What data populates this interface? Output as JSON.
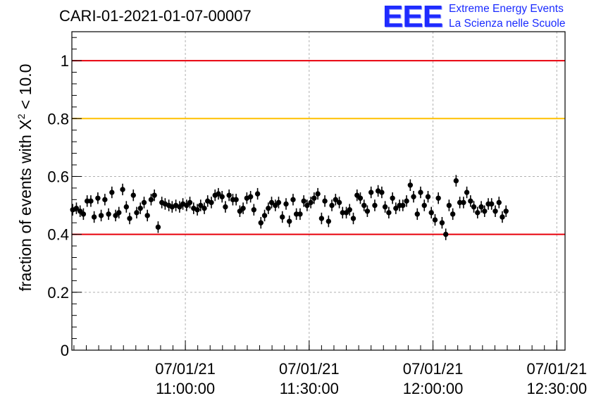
{
  "header": {
    "run_title": "CARI-01-2021-01-07-00007",
    "logo_mark": "EEE",
    "logo_line1": "Extreme Energy Events",
    "logo_line2": "La Scienza nelle Scuole"
  },
  "colors": {
    "points": "#000000",
    "limit_low": "#e8000b",
    "limit_high": "#e8000b",
    "reference": "#ffc000",
    "grid": "#b0b0b0",
    "logo": "#1f2bff"
  },
  "chart_data": {
    "type": "scatter",
    "ylabel_prefix": "fraction of events with ",
    "ylabel_symbol": "X",
    "ylabel_exp": "2",
    "ylabel_suffix": " < 10.0",
    "ylim": [
      0,
      1.1
    ],
    "xlim_minutes": [
      -27.5,
      92
    ],
    "y_ticks": [
      {
        "value": 0,
        "label": "0"
      },
      {
        "value": 0.2,
        "label": "0.2"
      },
      {
        "value": 0.4,
        "label": "0.4"
      },
      {
        "value": 0.6,
        "label": "0.6"
      },
      {
        "value": 0.8,
        "label": "0.8"
      },
      {
        "value": 1,
        "label": "1"
      }
    ],
    "x_ticks": [
      {
        "minute": 0,
        "date": "07/01/21",
        "time": "11:00:00"
      },
      {
        "minute": 30,
        "date": "07/01/21",
        "time": "11:30:00"
      },
      {
        "minute": 60,
        "date": "07/01/21",
        "time": "12:00:00"
      },
      {
        "minute": 90,
        "date": "07/01/21",
        "time": "12:30:00"
      }
    ],
    "grid": true,
    "horizontal_lines": [
      {
        "y": 1.0,
        "color": "#e8000b"
      },
      {
        "y": 0.8,
        "color": "#ffc000"
      },
      {
        "y": 0.4,
        "color": "#e8000b"
      }
    ],
    "error": 0.02,
    "points": [
      {
        "x": -27.3,
        "y": 0.485
      },
      {
        "x": -26.4,
        "y": 0.49
      },
      {
        "x": -25.5,
        "y": 0.48
      },
      {
        "x": -24.7,
        "y": 0.47
      },
      {
        "x": -23.8,
        "y": 0.515
      },
      {
        "x": -22.9,
        "y": 0.515
      },
      {
        "x": -22.1,
        "y": 0.46
      },
      {
        "x": -21.2,
        "y": 0.525
      },
      {
        "x": -20.4,
        "y": 0.465
      },
      {
        "x": -19.5,
        "y": 0.52
      },
      {
        "x": -18.6,
        "y": 0.47
      },
      {
        "x": -17.8,
        "y": 0.545
      },
      {
        "x": -16.9,
        "y": 0.465
      },
      {
        "x": -16.1,
        "y": 0.475
      },
      {
        "x": -15.2,
        "y": 0.555
      },
      {
        "x": -14.3,
        "y": 0.495
      },
      {
        "x": -13.5,
        "y": 0.455
      },
      {
        "x": -12.6,
        "y": 0.535
      },
      {
        "x": -11.8,
        "y": 0.475
      },
      {
        "x": -10.9,
        "y": 0.49
      },
      {
        "x": -10.0,
        "y": 0.51
      },
      {
        "x": -9.2,
        "y": 0.465
      },
      {
        "x": -8.3,
        "y": 0.52
      },
      {
        "x": -7.5,
        "y": 0.535
      },
      {
        "x": -6.6,
        "y": 0.425
      },
      {
        "x": -5.7,
        "y": 0.51
      },
      {
        "x": -4.9,
        "y": 0.505
      },
      {
        "x": -4.0,
        "y": 0.5
      },
      {
        "x": -3.2,
        "y": 0.495
      },
      {
        "x": -2.3,
        "y": 0.5
      },
      {
        "x": -1.4,
        "y": 0.495
      },
      {
        "x": -0.6,
        "y": 0.505
      },
      {
        "x": 0.3,
        "y": 0.5
      },
      {
        "x": 1.1,
        "y": 0.51
      },
      {
        "x": 2.0,
        "y": 0.49
      },
      {
        "x": 2.9,
        "y": 0.485
      },
      {
        "x": 3.7,
        "y": 0.5
      },
      {
        "x": 4.6,
        "y": 0.49
      },
      {
        "x": 5.4,
        "y": 0.515
      },
      {
        "x": 6.3,
        "y": 0.51
      },
      {
        "x": 7.2,
        "y": 0.535
      },
      {
        "x": 8.0,
        "y": 0.54
      },
      {
        "x": 8.9,
        "y": 0.53
      },
      {
        "x": 9.7,
        "y": 0.495
      },
      {
        "x": 10.6,
        "y": 0.535
      },
      {
        "x": 11.5,
        "y": 0.52
      },
      {
        "x": 12.3,
        "y": 0.52
      },
      {
        "x": 13.2,
        "y": 0.48
      },
      {
        "x": 14.0,
        "y": 0.49
      },
      {
        "x": 14.9,
        "y": 0.525
      },
      {
        "x": 15.8,
        "y": 0.53
      },
      {
        "x": 16.6,
        "y": 0.485
      },
      {
        "x": 17.5,
        "y": 0.54
      },
      {
        "x": 18.3,
        "y": 0.44
      },
      {
        "x": 19.2,
        "y": 0.465
      },
      {
        "x": 20.1,
        "y": 0.49
      },
      {
        "x": 20.9,
        "y": 0.51
      },
      {
        "x": 21.8,
        "y": 0.5
      },
      {
        "x": 22.6,
        "y": 0.51
      },
      {
        "x": 23.5,
        "y": 0.46
      },
      {
        "x": 24.4,
        "y": 0.505
      },
      {
        "x": 25.2,
        "y": 0.445
      },
      {
        "x": 26.1,
        "y": 0.52
      },
      {
        "x": 26.9,
        "y": 0.47
      },
      {
        "x": 27.8,
        "y": 0.47
      },
      {
        "x": 28.7,
        "y": 0.515
      },
      {
        "x": 29.5,
        "y": 0.5
      },
      {
        "x": 30.4,
        "y": 0.51
      },
      {
        "x": 31.2,
        "y": 0.525
      },
      {
        "x": 32.1,
        "y": 0.54
      },
      {
        "x": 33.0,
        "y": 0.455
      },
      {
        "x": 33.8,
        "y": 0.515
      },
      {
        "x": 34.7,
        "y": 0.445
      },
      {
        "x": 35.5,
        "y": 0.5
      },
      {
        "x": 36.4,
        "y": 0.52
      },
      {
        "x": 37.3,
        "y": 0.51
      },
      {
        "x": 38.1,
        "y": 0.475
      },
      {
        "x": 39.0,
        "y": 0.475
      },
      {
        "x": 39.8,
        "y": 0.485
      },
      {
        "x": 40.7,
        "y": 0.455
      },
      {
        "x": 41.6,
        "y": 0.535
      },
      {
        "x": 42.4,
        "y": 0.525
      },
      {
        "x": 43.3,
        "y": 0.5
      },
      {
        "x": 44.1,
        "y": 0.48
      },
      {
        "x": 45.0,
        "y": 0.545
      },
      {
        "x": 45.9,
        "y": 0.5
      },
      {
        "x": 46.7,
        "y": 0.55
      },
      {
        "x": 47.6,
        "y": 0.545
      },
      {
        "x": 48.4,
        "y": 0.495
      },
      {
        "x": 49.3,
        "y": 0.475
      },
      {
        "x": 50.2,
        "y": 0.525
      },
      {
        "x": 51.0,
        "y": 0.49
      },
      {
        "x": 51.9,
        "y": 0.5
      },
      {
        "x": 52.7,
        "y": 0.5
      },
      {
        "x": 53.6,
        "y": 0.515
      },
      {
        "x": 54.5,
        "y": 0.57
      },
      {
        "x": 55.3,
        "y": 0.53
      },
      {
        "x": 56.2,
        "y": 0.47
      },
      {
        "x": 57.0,
        "y": 0.545
      },
      {
        "x": 57.9,
        "y": 0.5
      },
      {
        "x": 58.8,
        "y": 0.53
      },
      {
        "x": 59.6,
        "y": 0.475
      },
      {
        "x": 60.5,
        "y": 0.45
      },
      {
        "x": 61.3,
        "y": 0.525
      },
      {
        "x": 62.2,
        "y": 0.44
      },
      {
        "x": 63.1,
        "y": 0.4
      },
      {
        "x": 63.9,
        "y": 0.5
      },
      {
        "x": 64.8,
        "y": 0.47
      },
      {
        "x": 65.6,
        "y": 0.585
      },
      {
        "x": 66.5,
        "y": 0.51
      },
      {
        "x": 67.4,
        "y": 0.51
      },
      {
        "x": 68.2,
        "y": 0.545
      },
      {
        "x": 69.1,
        "y": 0.515
      },
      {
        "x": 69.9,
        "y": 0.495
      },
      {
        "x": 70.8,
        "y": 0.475
      },
      {
        "x": 71.7,
        "y": 0.495
      },
      {
        "x": 72.5,
        "y": 0.48
      },
      {
        "x": 73.4,
        "y": 0.505
      },
      {
        "x": 74.2,
        "y": 0.505
      },
      {
        "x": 75.1,
        "y": 0.48
      },
      {
        "x": 76.0,
        "y": 0.51
      },
      {
        "x": 76.8,
        "y": 0.46
      },
      {
        "x": 77.7,
        "y": 0.48
      }
    ]
  }
}
